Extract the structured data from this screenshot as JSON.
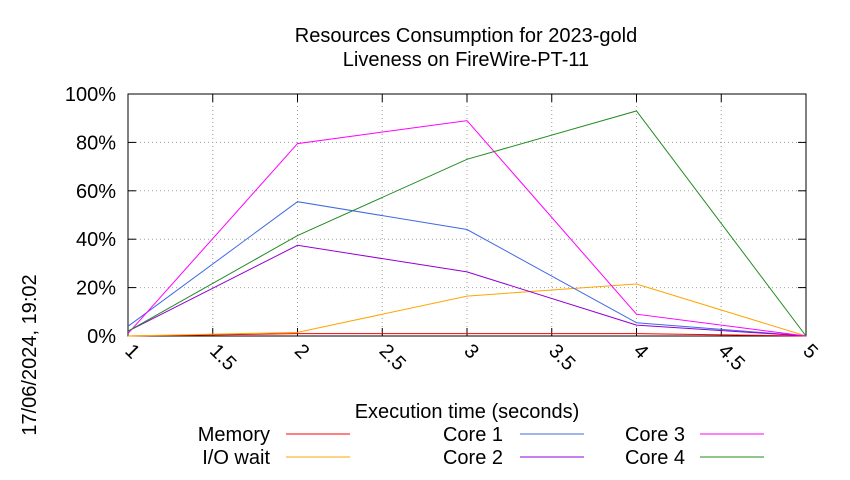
{
  "chart_data": {
    "type": "line",
    "title_line1": "Resources Consumption for 2023-gold",
    "title_line2": "Liveness on FireWire-PT-11",
    "xlabel": "Execution time (seconds)",
    "ylabel": "",
    "side_label": "17/06/2024, 19:02",
    "xlim": [
      1,
      5
    ],
    "ylim": [
      0,
      100
    ],
    "x_ticks": [
      1,
      1.5,
      2,
      2.5,
      3,
      3.5,
      4,
      4.5,
      5
    ],
    "x_tick_labels": [
      "1",
      "1.5",
      "2",
      "2.5",
      "3",
      "3.5",
      "4",
      "4.5",
      "5"
    ],
    "y_ticks": [
      0,
      20,
      40,
      60,
      80,
      100
    ],
    "y_tick_labels": [
      "0%",
      "20%",
      "40%",
      "60%",
      "80%",
      "100%"
    ],
    "grid": true,
    "legend_position": "bottom",
    "x": [
      1,
      2,
      3,
      4,
      5
    ],
    "series": [
      {
        "name": "Memory",
        "color": "#ff0000",
        "values": [
          0,
          1,
          1,
          1,
          0
        ]
      },
      {
        "name": "I/O wait",
        "color": "#ffa500",
        "values": [
          0,
          1.5,
          16.5,
          21.5,
          0
        ]
      },
      {
        "name": "Core 1",
        "color": "#4169e1",
        "values": [
          4,
          55.5,
          44,
          5.5,
          0
        ]
      },
      {
        "name": "Core 2",
        "color": "#9400d3",
        "values": [
          2,
          37.5,
          26.5,
          4.5,
          0
        ]
      },
      {
        "name": "Core 3",
        "color": "#ff00ff",
        "values": [
          1,
          79.5,
          89,
          9,
          0
        ]
      },
      {
        "name": "Core 4",
        "color": "#228b22",
        "values": [
          2,
          41.5,
          73,
          93,
          0
        ]
      }
    ]
  }
}
